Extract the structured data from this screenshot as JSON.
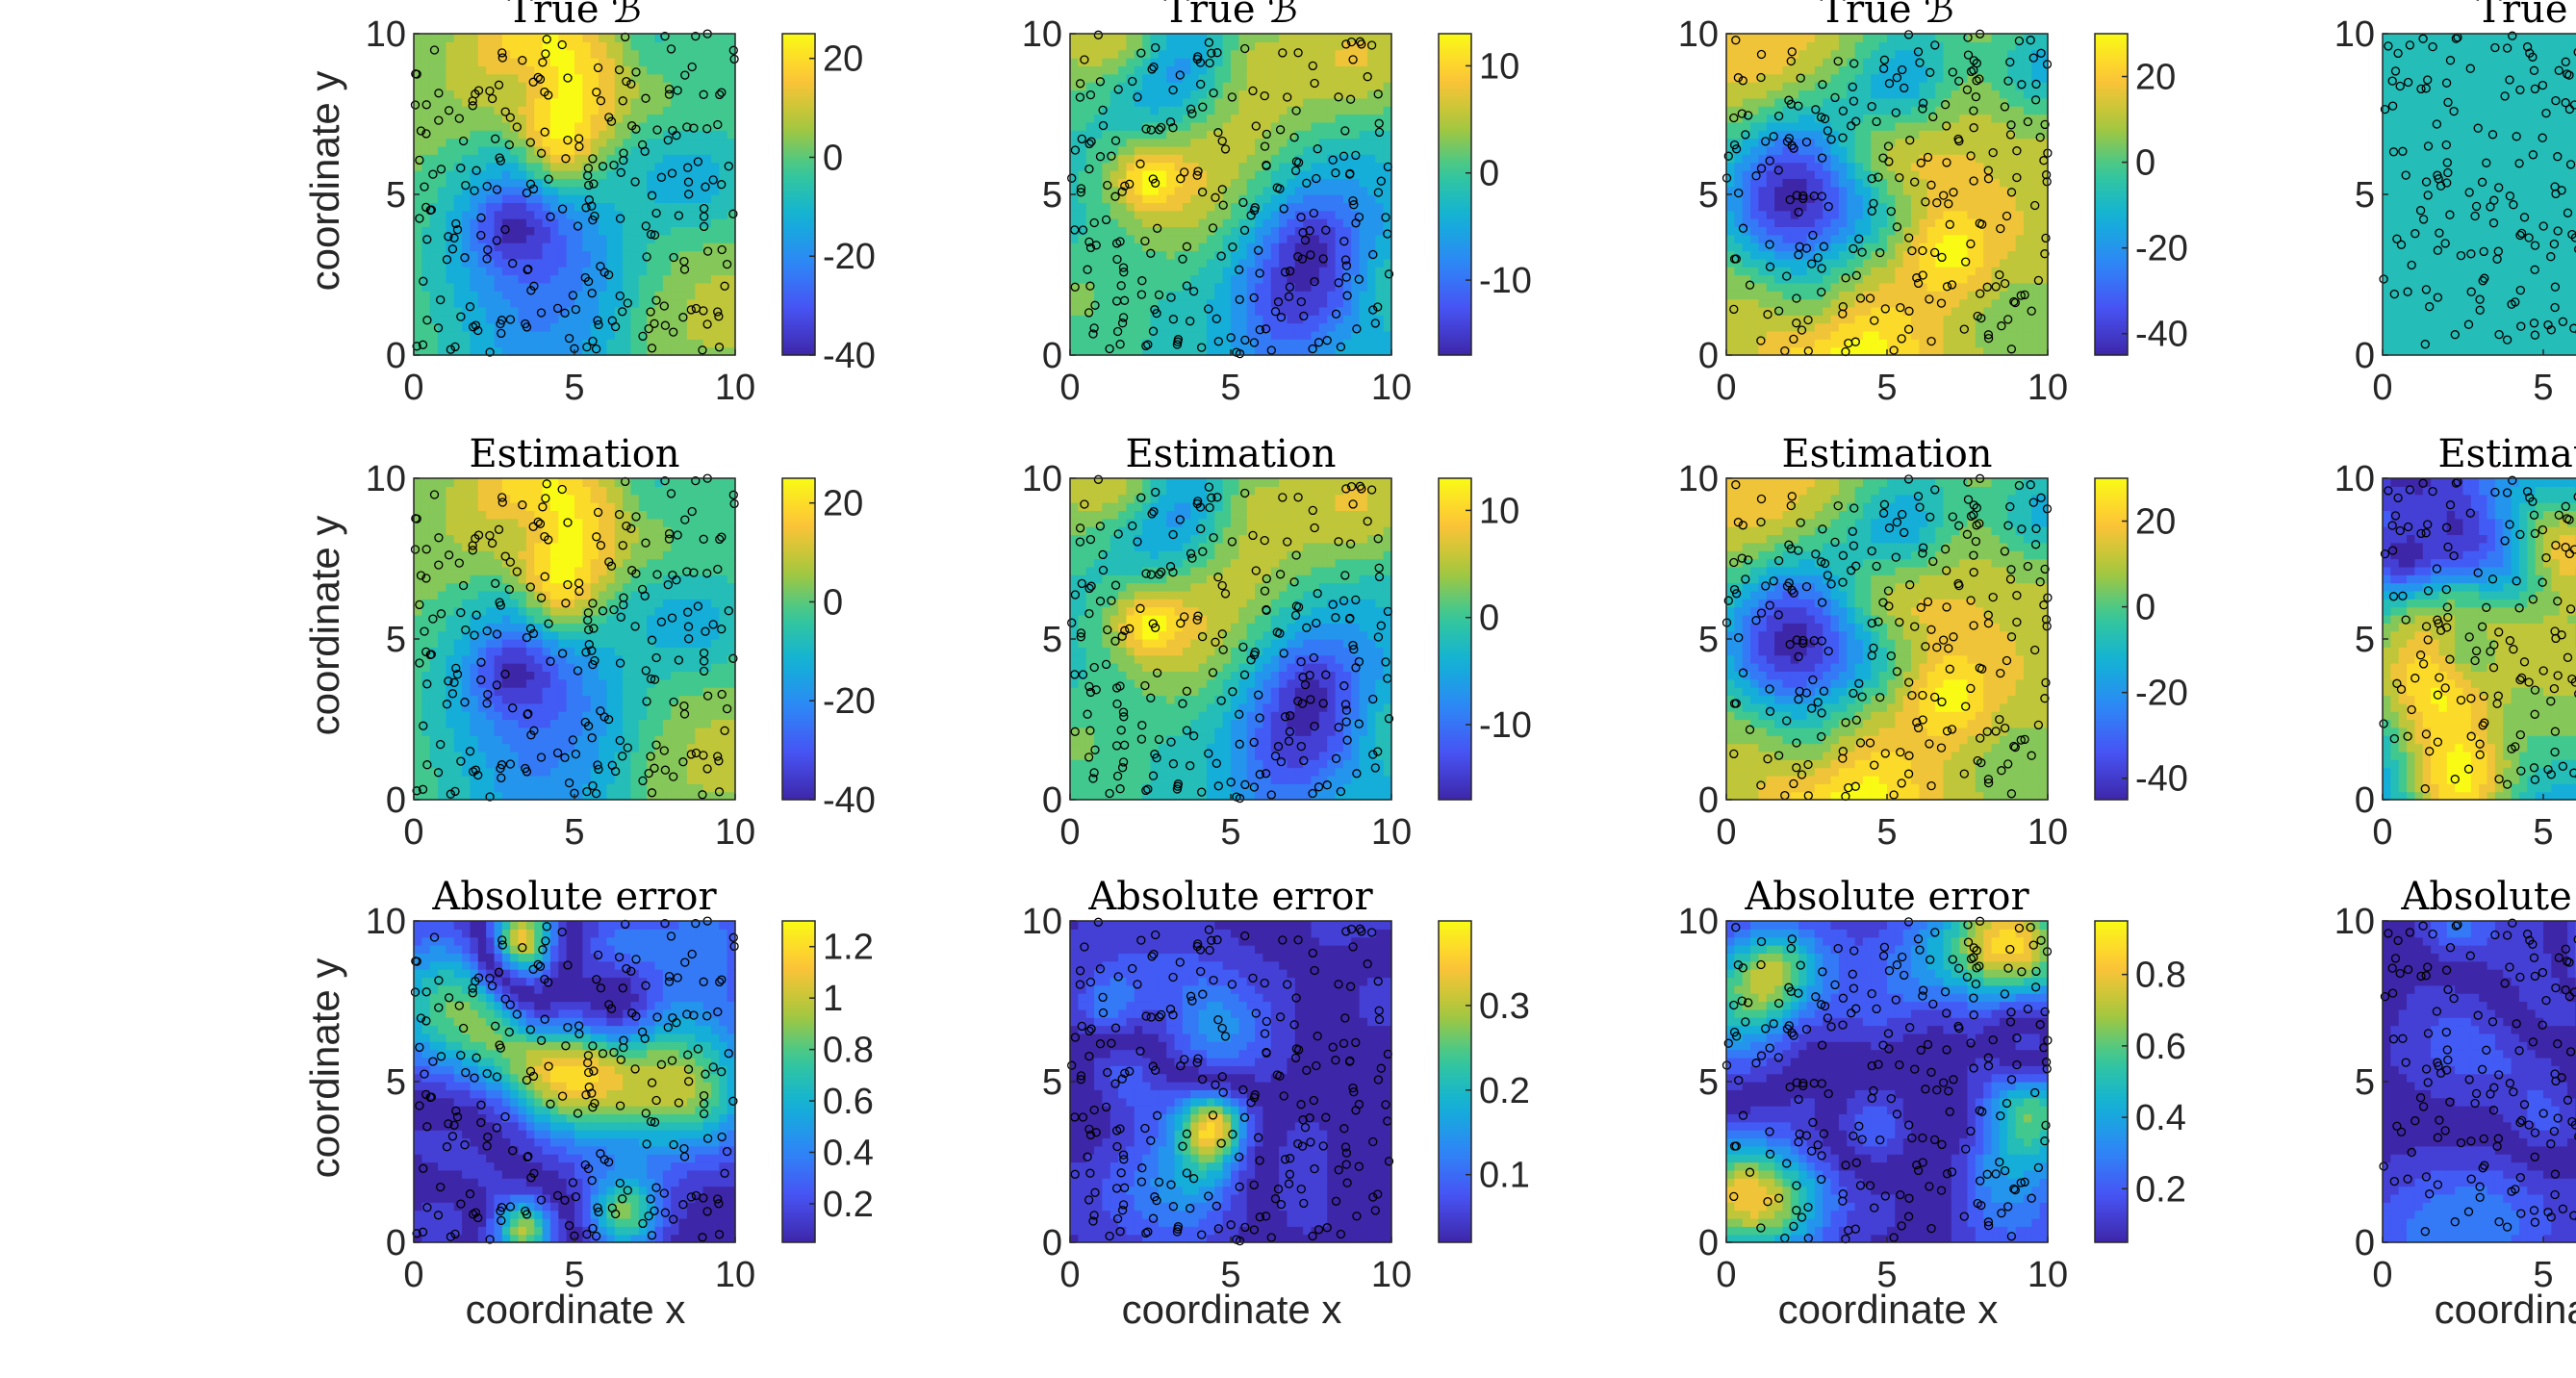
{
  "figure": {
    "xlabel": "coordinate x",
    "ylabel": "coordinate y",
    "grid_columns_visible": 4,
    "grid_rows": 3
  },
  "chart_data": [
    {
      "col": 0,
      "row": 0,
      "type": "heatmap",
      "title": "True ℬ",
      "xlim": [
        0,
        10
      ],
      "ylim": [
        0,
        10
      ],
      "x_ticks": [
        "0",
        "5",
        "10"
      ],
      "y_ticks": [
        "0",
        "5",
        "10"
      ],
      "colorbar": {
        "range": [
          -40,
          25
        ],
        "ticks": [
          -40,
          -20,
          0,
          20
        ],
        "tick_labels": [
          "-40",
          "-20",
          "0",
          "20"
        ]
      },
      "seed": 11
    },
    {
      "col": 1,
      "row": 0,
      "type": "heatmap",
      "title": "True ℬ",
      "xlim": [
        0,
        10
      ],
      "ylim": [
        0,
        10
      ],
      "x_ticks": [
        "0",
        "5",
        "10"
      ],
      "y_ticks": [
        "0",
        "5",
        "10"
      ],
      "colorbar": {
        "range": [
          -17,
          13
        ],
        "ticks": [
          -10,
          0,
          10
        ],
        "tick_labels": [
          "-10",
          "0",
          "10"
        ]
      },
      "seed": 23
    },
    {
      "col": 2,
      "row": 0,
      "type": "heatmap",
      "title": "True ℬ",
      "xlim": [
        0,
        10
      ],
      "ylim": [
        0,
        10
      ],
      "x_ticks": [
        "0",
        "5",
        "10"
      ],
      "y_ticks": [
        "0",
        "5",
        "10"
      ],
      "colorbar": {
        "range": [
          -45,
          30
        ],
        "ticks": [
          -40,
          -20,
          0,
          20
        ],
        "tick_labels": [
          "-40",
          "-20",
          "0",
          "20"
        ]
      },
      "seed": 37
    },
    {
      "col": 3,
      "row": 0,
      "type": "heatmap",
      "title": "True ℬ",
      "xlim": [
        0,
        10
      ],
      "ylim": [
        0,
        10
      ],
      "x_ticks": [
        "0",
        "5"
      ],
      "y_ticks": [
        "0",
        "5",
        "10"
      ],
      "uniform": true,
      "seed": 41
    },
    {
      "col": 0,
      "row": 1,
      "type": "heatmap",
      "title": "Estimation",
      "xlim": [
        0,
        10
      ],
      "ylim": [
        0,
        10
      ],
      "x_ticks": [
        "0",
        "5",
        "10"
      ],
      "y_ticks": [
        "0",
        "5",
        "10"
      ],
      "colorbar": {
        "range": [
          -40,
          25
        ],
        "ticks": [
          -40,
          -20,
          0,
          20
        ],
        "tick_labels": [
          "-40",
          "-20",
          "0",
          "20"
        ]
      },
      "seed": 11
    },
    {
      "col": 1,
      "row": 1,
      "type": "heatmap",
      "title": "Estimation",
      "xlim": [
        0,
        10
      ],
      "ylim": [
        0,
        10
      ],
      "x_ticks": [
        "0",
        "5",
        "10"
      ],
      "y_ticks": [
        "0",
        "5",
        "10"
      ],
      "colorbar": {
        "range": [
          -17,
          13
        ],
        "ticks": [
          -10,
          0,
          10
        ],
        "tick_labels": [
          "-10",
          "0",
          "10"
        ]
      },
      "seed": 23
    },
    {
      "col": 2,
      "row": 1,
      "type": "heatmap",
      "title": "Estimation",
      "xlim": [
        0,
        10
      ],
      "ylim": [
        0,
        10
      ],
      "x_ticks": [
        "0",
        "5",
        "10"
      ],
      "y_ticks": [
        "0",
        "5",
        "10"
      ],
      "colorbar": {
        "range": [
          -45,
          30
        ],
        "ticks": [
          -40,
          -20,
          0,
          20
        ],
        "tick_labels": [
          "-40",
          "-20",
          "0",
          "20"
        ]
      },
      "seed": 37
    },
    {
      "col": 3,
      "row": 1,
      "type": "heatmap",
      "title": "Estimation",
      "xlim": [
        0,
        10
      ],
      "ylim": [
        0,
        10
      ],
      "x_ticks": [
        "0",
        "5"
      ],
      "y_ticks": [
        "0",
        "5",
        "10"
      ],
      "seed": 43
    },
    {
      "col": 0,
      "row": 2,
      "type": "heatmap",
      "title": "Absolute error",
      "xlim": [
        0,
        10
      ],
      "ylim": [
        0,
        10
      ],
      "x_ticks": [
        "0",
        "5",
        "10"
      ],
      "y_ticks": [
        "0",
        "5",
        "10"
      ],
      "colorbar": {
        "range": [
          0.05,
          1.3
        ],
        "ticks": [
          0.2,
          0.4,
          0.6,
          0.8,
          1,
          1.2
        ],
        "tick_labels": [
          "0.2",
          "0.4",
          "0.6",
          "0.8",
          "1",
          "1.2"
        ]
      },
      "error": true,
      "seed": 51
    },
    {
      "col": 1,
      "row": 2,
      "type": "heatmap",
      "title": "Absolute error",
      "xlim": [
        0,
        10
      ],
      "ylim": [
        0,
        10
      ],
      "x_ticks": [
        "0",
        "5",
        "10"
      ],
      "y_ticks": [
        "0",
        "5",
        "10"
      ],
      "colorbar": {
        "range": [
          0.02,
          0.4
        ],
        "ticks": [
          0.1,
          0.2,
          0.3
        ],
        "tick_labels": [
          "0.1",
          "0.2",
          "0.3"
        ]
      },
      "error": true,
      "seed": 57
    },
    {
      "col": 2,
      "row": 2,
      "type": "heatmap",
      "title": "Absolute error",
      "xlim": [
        0,
        10
      ],
      "ylim": [
        0,
        10
      ],
      "x_ticks": [
        "0",
        "5",
        "10"
      ],
      "y_ticks": [
        "0",
        "5",
        "10"
      ],
      "colorbar": {
        "range": [
          0.05,
          0.95
        ],
        "ticks": [
          0.2,
          0.4,
          0.6,
          0.8
        ],
        "tick_labels": [
          "0.2",
          "0.4",
          "0.6",
          "0.8"
        ]
      },
      "error": true,
      "seed": 61
    },
    {
      "col": 3,
      "row": 2,
      "type": "heatmap",
      "title": "Absolute error",
      "xlim": [
        0,
        10
      ],
      "ylim": [
        0,
        10
      ],
      "x_ticks": [
        "0",
        "5"
      ],
      "y_ticks": [
        "0",
        "5",
        "10"
      ],
      "error": true,
      "seed": 67
    }
  ]
}
